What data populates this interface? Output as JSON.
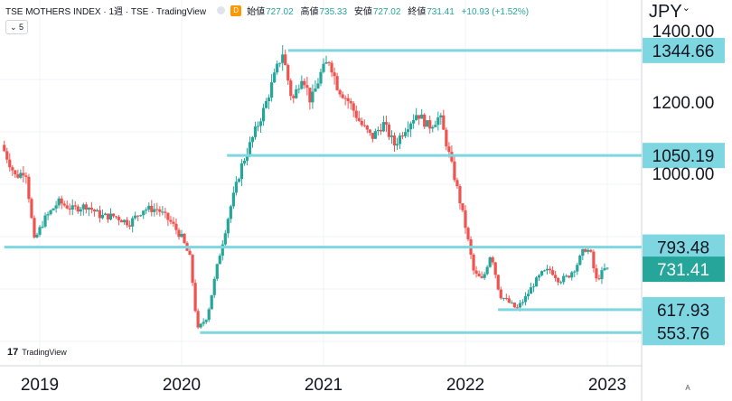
{
  "header": {
    "symbol": "TSE MOTHERS INDEX · 1週 · TSE · TradingView",
    "badge": "D",
    "ohlc": [
      {
        "label": "始値",
        "value": "727.02"
      },
      {
        "label": "高値",
        "value": "735.33"
      },
      {
        "label": "安値",
        "value": "727.02"
      },
      {
        "label": "終値",
        "value": "731.41"
      }
    ],
    "change": "+10.93 (+1.52%)",
    "collapse_label": "⌄ 5"
  },
  "currency": "JPY",
  "brand": "TradingView",
  "autoscale_label": "A",
  "colors": {
    "up": "#26a69a",
    "down": "#ef5350",
    "level_line": "#7ed6e0",
    "last_price_bg": "#26a69a"
  },
  "chart_data": {
    "type": "candlestick",
    "ylim": [
      530,
      1400
    ],
    "y_ticks": [
      {
        "value": 1400,
        "label": "1400.00"
      },
      {
        "value": 1200,
        "label": "1200.00"
      },
      {
        "value": 1000,
        "label": "1000.00"
      }
    ],
    "x_ticks": [
      {
        "value": 2019.0,
        "label": "2019"
      },
      {
        "value": 2020.0,
        "label": "2020"
      },
      {
        "value": 2021.0,
        "label": "2021"
      },
      {
        "value": 2022.0,
        "label": "2022"
      },
      {
        "value": 2023.0,
        "label": "2023"
      }
    ],
    "levels": [
      {
        "value": 1344.66,
        "label": "1344.66",
        "from": 2020.75
      },
      {
        "value": 1050.19,
        "label": "1050.19",
        "from": 2020.32
      },
      {
        "value": 793.48,
        "label": "793.48",
        "from": 2018.75
      },
      {
        "value": 617.93,
        "label": "617.93",
        "from": 2022.23
      },
      {
        "value": 553.76,
        "label": "553.76",
        "from": 2020.13
      }
    ],
    "last_price": {
      "value": 731.41,
      "label": "731.41"
    },
    "price_path": [
      [
        2018.75,
        1080
      ],
      [
        2018.85,
        990
      ],
      [
        2018.92,
        1010
      ],
      [
        2018.98,
        810
      ],
      [
        2019.05,
        870
      ],
      [
        2019.15,
        920
      ],
      [
        2019.25,
        900
      ],
      [
        2019.35,
        910
      ],
      [
        2019.45,
        880
      ],
      [
        2019.55,
        880
      ],
      [
        2019.65,
        860
      ],
      [
        2019.75,
        900
      ],
      [
        2019.85,
        900
      ],
      [
        2019.95,
        860
      ],
      [
        2020.02,
        820
      ],
      [
        2020.08,
        760
      ],
      [
        2020.13,
        560
      ],
      [
        2020.2,
        600
      ],
      [
        2020.28,
        760
      ],
      [
        2020.36,
        900
      ],
      [
        2020.44,
        1020
      ],
      [
        2020.52,
        1100
      ],
      [
        2020.6,
        1180
      ],
      [
        2020.68,
        1280
      ],
      [
        2020.73,
        1340
      ],
      [
        2020.8,
        1200
      ],
      [
        2020.87,
        1280
      ],
      [
        2020.93,
        1200
      ],
      [
        2021.0,
        1280
      ],
      [
        2021.06,
        1320
      ],
      [
        2021.12,
        1240
      ],
      [
        2021.2,
        1200
      ],
      [
        2021.28,
        1140
      ],
      [
        2021.36,
        1100
      ],
      [
        2021.44,
        1140
      ],
      [
        2021.52,
        1080
      ],
      [
        2021.6,
        1130
      ],
      [
        2021.68,
        1170
      ],
      [
        2021.76,
        1130
      ],
      [
        2021.84,
        1160
      ],
      [
        2021.9,
        1060
      ],
      [
        2021.96,
        960
      ],
      [
        2022.02,
        850
      ],
      [
        2022.08,
        720
      ],
      [
        2022.14,
        700
      ],
      [
        2022.2,
        780
      ],
      [
        2022.26,
        660
      ],
      [
        2022.32,
        640
      ],
      [
        2022.38,
        620
      ],
      [
        2022.44,
        650
      ],
      [
        2022.5,
        690
      ],
      [
        2022.56,
        720
      ],
      [
        2022.62,
        730
      ],
      [
        2022.68,
        700
      ],
      [
        2022.74,
        710
      ],
      [
        2022.8,
        740
      ],
      [
        2022.86,
        790
      ],
      [
        2022.9,
        780
      ],
      [
        2022.94,
        700
      ],
      [
        2023.0,
        731
      ]
    ]
  }
}
